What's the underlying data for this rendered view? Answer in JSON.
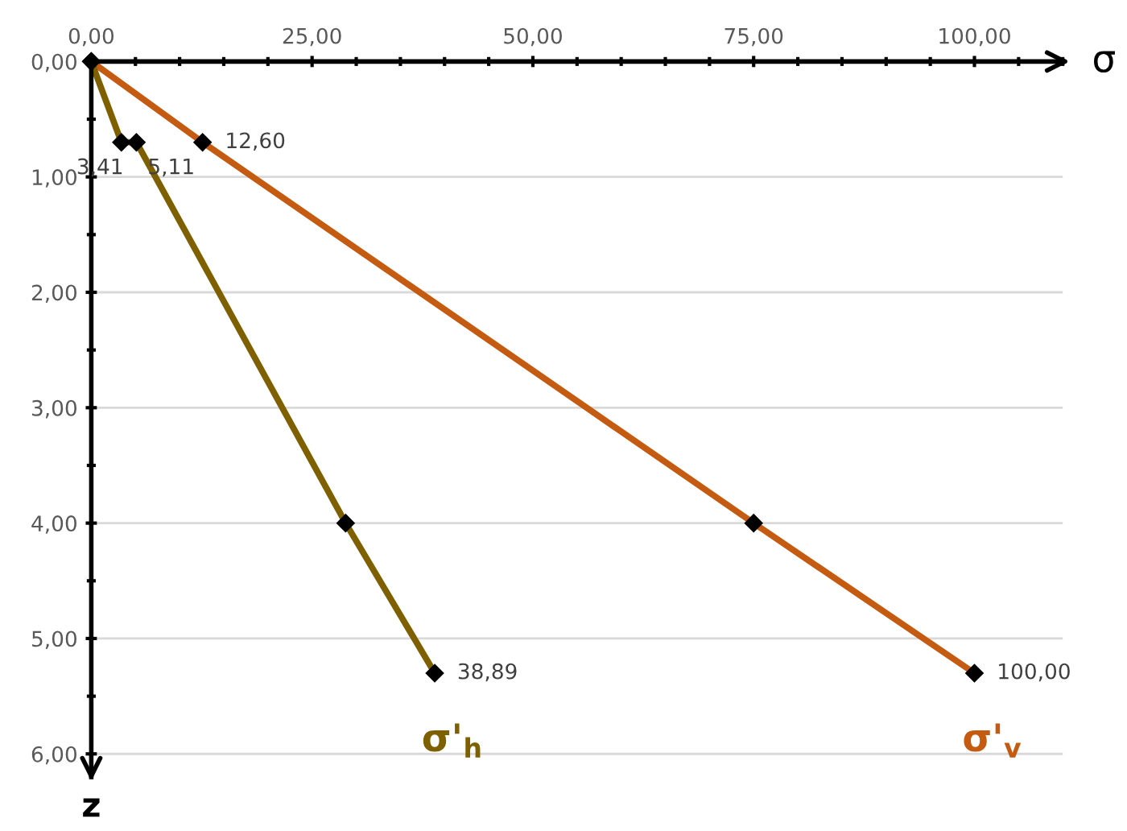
{
  "chart_data": {
    "type": "line",
    "xlabel": "σ",
    "ylabel": "z",
    "xlim": [
      0,
      110
    ],
    "xticks": [
      {
        "value": 0,
        "label": "0,00"
      },
      {
        "value": 25,
        "label": "25,00"
      },
      {
        "value": 50,
        "label": "50,00"
      },
      {
        "value": 75,
        "label": "75,00"
      },
      {
        "value": 100,
        "label": "100,00"
      }
    ],
    "ylim": [
      6.2,
      0
    ],
    "yticks": [
      {
        "value": 0,
        "label": "0,00"
      },
      {
        "value": 1,
        "label": "1,00"
      },
      {
        "value": 2,
        "label": "2,00"
      },
      {
        "value": 3,
        "label": "3,00"
      },
      {
        "value": 4,
        "label": "4,00"
      },
      {
        "value": 5,
        "label": "5,00"
      },
      {
        "value": 6,
        "label": "6,00"
      }
    ],
    "grid": "y",
    "legend": false,
    "marker": "diamond",
    "line_style": "solid",
    "series": [
      {
        "name": "σ'$_{v}$",
        "color": "#c55a11",
        "x": [
          0,
          12.6,
          75,
          100
        ],
        "values": [
          0,
          0.7,
          4.0,
          5.3
        ]
      },
      {
        "name": "σ'$_{h}$",
        "color": "#7f6000",
        "x": [
          0,
          3.41,
          5.11,
          28.8,
          38.89
        ],
        "values": [
          0,
          0.7,
          0.7,
          4.0,
          5.3
        ]
      }
    ],
    "annotations": [
      {
        "text": "3,41",
        "x": 3.41,
        "y": 0.7
      },
      {
        "text": "5,11",
        "x": 5.11,
        "y": 0.7
      },
      {
        "text": "12,60",
        "x": 12.6,
        "y": 0.7
      },
      {
        "text": "38,89",
        "x": 38.89,
        "y": 5.3
      },
      {
        "text": "100,00",
        "x": 100,
        "y": 5.3
      }
    ]
  }
}
